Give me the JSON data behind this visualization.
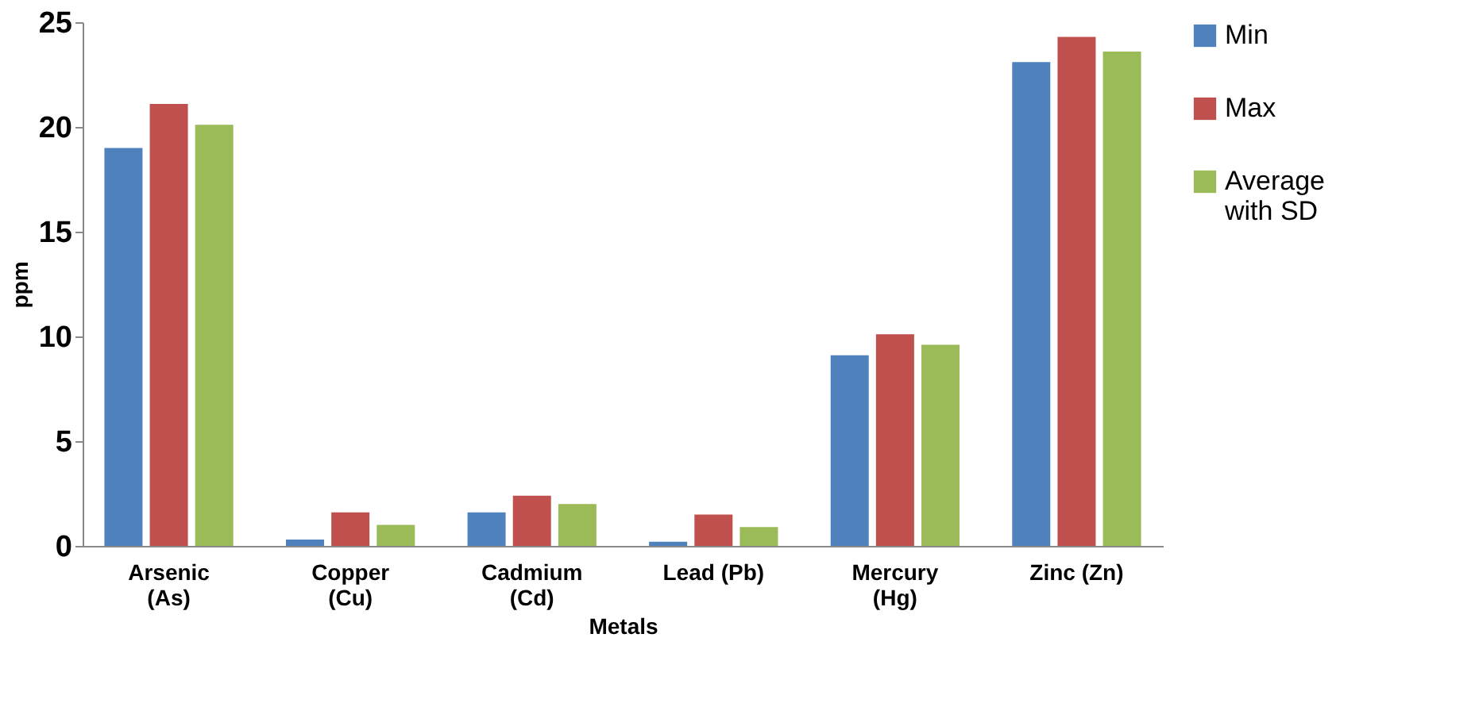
{
  "chart_data": {
    "type": "bar",
    "xlabel": "Metals",
    "ylabel": "ppm",
    "categories": [
      "Arsenic\n(As)",
      "Copper\n(Cu)",
      "Cadmium\n(Cd)",
      "Lead (Pb)",
      "Mercury\n(Hg)",
      "Zinc (Zn)"
    ],
    "series": [
      {
        "name": "Min",
        "color": "#4f81bd",
        "values": [
          19.0,
          0.3,
          1.6,
          0.2,
          9.1,
          23.1
        ]
      },
      {
        "name": "Max",
        "color": "#c0504d",
        "values": [
          21.1,
          1.6,
          2.4,
          1.5,
          10.1,
          24.3
        ]
      },
      {
        "name": "Average\nwith SD",
        "color": "#9bbb59",
        "values": [
          20.1,
          1.0,
          2.0,
          0.9,
          9.6,
          23.6
        ]
      }
    ],
    "ylim": [
      0,
      25
    ],
    "yticks": [
      0,
      5,
      10,
      15,
      20,
      25
    ],
    "grid": false,
    "legend": "right"
  }
}
